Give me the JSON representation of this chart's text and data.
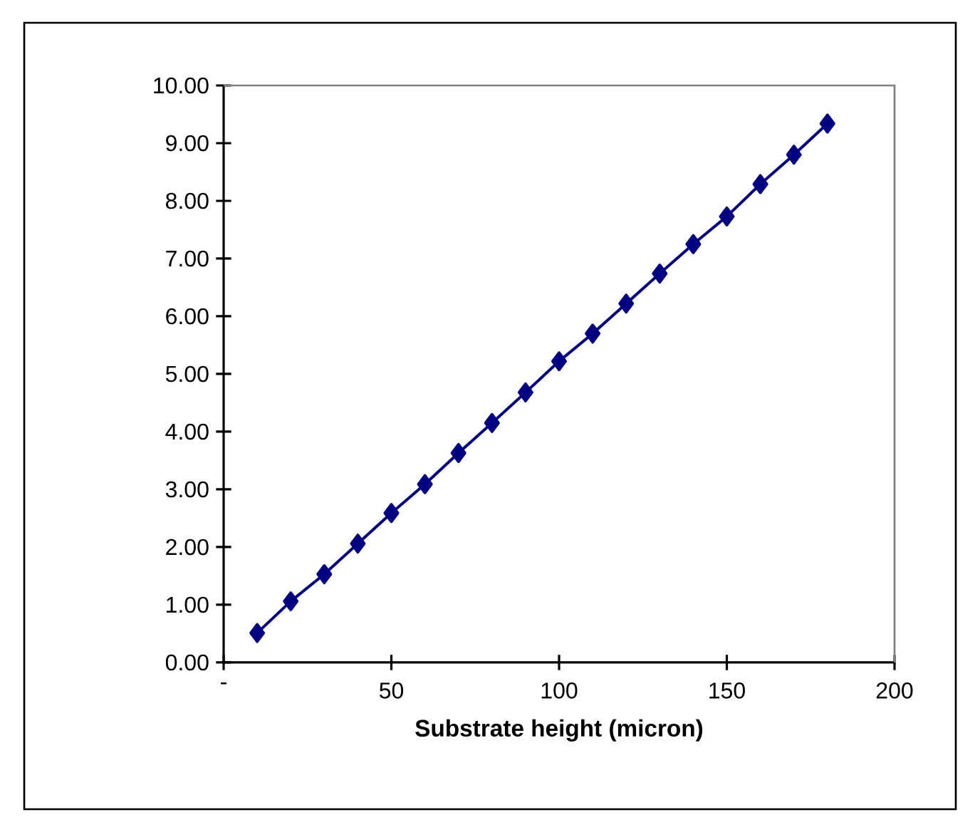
{
  "chart_data": {
    "type": "line",
    "xlabel": "Substrate height (micron)",
    "x": [
      10,
      20,
      30,
      40,
      50,
      60,
      70,
      80,
      90,
      100,
      110,
      120,
      130,
      140,
      150,
      160,
      170,
      180
    ],
    "series": [
      {
        "color": "#000080",
        "values": [
          0.51,
          1.06,
          1.53,
          2.06,
          2.59,
          3.09,
          3.63,
          4.15,
          4.68,
          5.22,
          5.7,
          6.22,
          6.74,
          7.25,
          7.73,
          8.29,
          8.8,
          9.34
        ]
      }
    ],
    "xlim": [
      0,
      200
    ],
    "ylim": [
      0,
      10
    ],
    "xticks": [
      {
        "value": 0,
        "label": "-"
      },
      50,
      100,
      150,
      200
    ],
    "yticks": [
      {
        "value": 0,
        "label": "0.00"
      },
      {
        "value": 1,
        "label": "1.00"
      },
      {
        "value": 2,
        "label": "2.00"
      },
      {
        "value": 3,
        "label": "3.00"
      },
      {
        "value": 4,
        "label": "4.00"
      },
      {
        "value": 5,
        "label": "5.00"
      },
      {
        "value": 6,
        "label": "6.00"
      },
      {
        "value": 7,
        "label": "7.00"
      },
      {
        "value": 8,
        "label": "8.00"
      },
      {
        "value": 9,
        "label": "9.00"
      },
      {
        "value": 10,
        "label": "10.00"
      }
    ],
    "marker": "diamond",
    "line_style": "solid"
  }
}
